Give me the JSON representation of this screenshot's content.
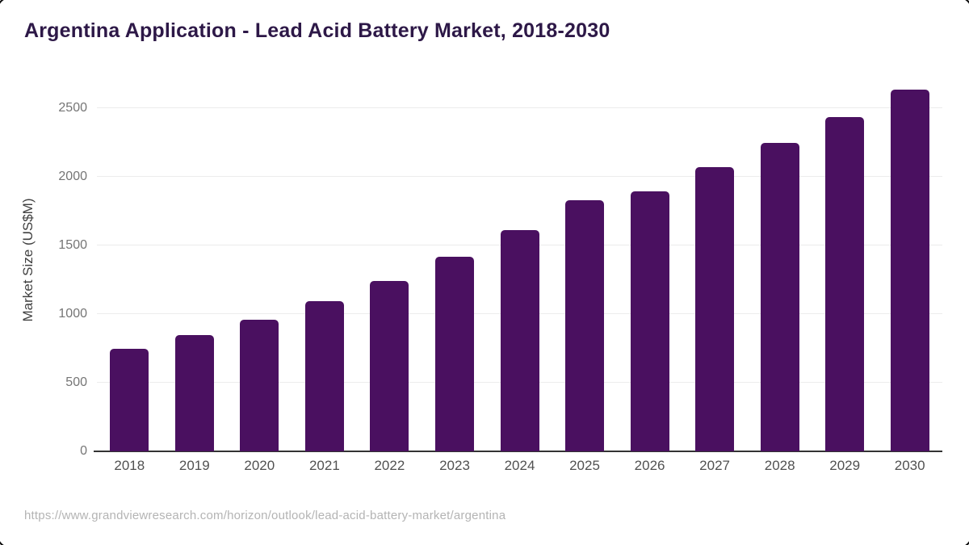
{
  "title": "Argentina Application - Lead Acid Battery Market, 2018-2030",
  "source_url": "https://www.grandviewresearch.com/horizon/outlook/lead-acid-battery-market/argentina",
  "colors": {
    "bar": "#4a1060",
    "title": "#2d1847",
    "axis_line": "#333333",
    "gridline": "#ececec",
    "y_tick_label": "#757575",
    "x_tick_label": "#515151",
    "source_text": "#b4b4b4"
  },
  "chart_data": {
    "type": "bar",
    "title": "Argentina Application - Lead Acid Battery Market, 2018-2030",
    "categories": [
      "2018",
      "2019",
      "2020",
      "2021",
      "2022",
      "2023",
      "2024",
      "2025",
      "2026",
      "2027",
      "2028",
      "2029",
      "2030"
    ],
    "values": [
      745,
      845,
      960,
      1095,
      1240,
      1415,
      1610,
      1830,
      1895,
      2070,
      2245,
      2435,
      2635
    ],
    "xlabel": "",
    "ylabel": "Market Size (US$M)",
    "ylim": [
      0,
      2700
    ],
    "yticks": [
      0,
      500,
      1000,
      1500,
      2000,
      2500
    ],
    "grid": "horizontal",
    "legend": "none",
    "bar_color": "#4a1060"
  }
}
